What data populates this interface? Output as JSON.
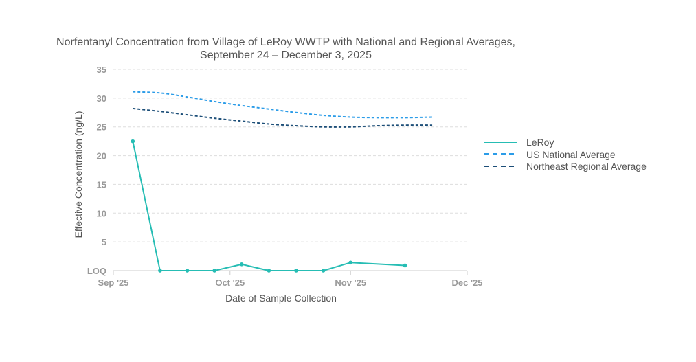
{
  "chart_data": {
    "type": "line",
    "title_line1": "Norfentanyl Concentration from Village of LeRoy WWTP with National and Regional Averages,",
    "title_line2": "September 24 – December 3, 2025",
    "xlabel": "Date of Sample Collection",
    "ylabel": "Effective Concentration (ng/L)",
    "ylim": [
      0,
      35
    ],
    "y_ticks": [
      {
        "value": 0,
        "label": "LOQ"
      },
      {
        "value": 5,
        "label": "5"
      },
      {
        "value": 10,
        "label": "10"
      },
      {
        "value": 15,
        "label": "15"
      },
      {
        "value": 20,
        "label": "20"
      },
      {
        "value": 25,
        "label": "25"
      },
      {
        "value": 30,
        "label": "30"
      },
      {
        "value": 35,
        "label": "35"
      }
    ],
    "x_range_days": [
      0,
      91
    ],
    "x_ticks": [
      {
        "day": 0,
        "label": "Sep '25"
      },
      {
        "day": 30,
        "label": "Oct '25"
      },
      {
        "day": 61,
        "label": "Nov '25"
      },
      {
        "day": 91,
        "label": "Dec '25"
      }
    ],
    "series": [
      {
        "name": "LeRoy",
        "color": "#26bdb4",
        "style": "solid",
        "markers": true,
        "x": [
          5,
          12,
          19,
          26,
          33,
          40,
          47,
          54,
          61,
          75
        ],
        "y": [
          22.5,
          0,
          0,
          0,
          1.1,
          0,
          0,
          0,
          1.4,
          0.9
        ]
      },
      {
        "name": "US National Average",
        "color": "#2b9ce8",
        "style": "dashed",
        "markers": false,
        "x": [
          5,
          12,
          19,
          26,
          33,
          40,
          47,
          54,
          61,
          68,
          75,
          82
        ],
        "y": [
          31.1,
          30.9,
          30.2,
          29.4,
          28.7,
          28.1,
          27.5,
          27.0,
          26.7,
          26.6,
          26.6,
          26.7
        ]
      },
      {
        "name": "Northeast Regional Average",
        "color": "#1c4e78",
        "style": "dashed",
        "markers": false,
        "x": [
          5,
          12,
          19,
          26,
          33,
          40,
          47,
          54,
          61,
          68,
          75,
          82
        ],
        "y": [
          28.2,
          27.7,
          27.1,
          26.5,
          26.0,
          25.5,
          25.2,
          25.0,
          25.0,
          25.2,
          25.3,
          25.3
        ]
      }
    ],
    "legend_position": "right"
  }
}
